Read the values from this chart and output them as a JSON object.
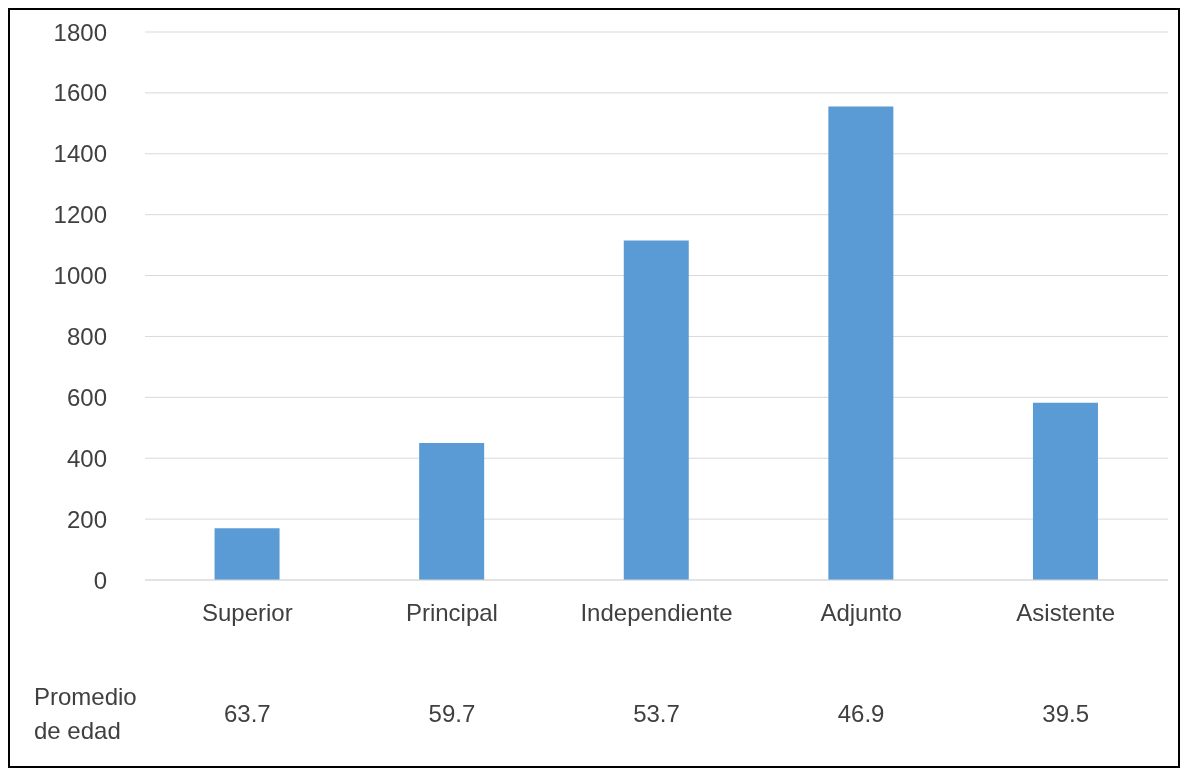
{
  "chart_data": {
    "type": "bar",
    "categories": [
      "Superior",
      "Principal",
      "Independiente",
      "Adjunto",
      "Asistente"
    ],
    "values": [
      170,
      450,
      1115,
      1555,
      582
    ],
    "color": "#5b9bd5",
    "ylim": [
      0,
      1800
    ],
    "yticks": [
      0,
      200,
      400,
      600,
      800,
      1000,
      1200,
      1400,
      1600,
      1800
    ],
    "grid": "y",
    "annotations": [
      "Promedio de edad",
      "63.7",
      "59.7",
      "53.7",
      "46.9",
      "39.5"
    ]
  }
}
